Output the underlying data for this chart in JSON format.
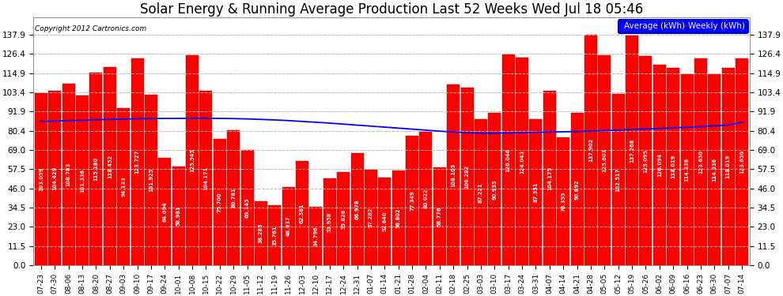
{
  "title": "Solar Energy & Running Average Production Last 52 Weeks Wed Jul 18 05:46",
  "copyright": "Copyright 2012 Cartronics.com",
  "legend_labels": [
    "Average (kWh)",
    "Weekly (kWh)"
  ],
  "bar_color": "#ff0000",
  "bar_edge_color": "#bb0000",
  "avg_line_color": "blue",
  "background_color": "#ffffff",
  "plot_bg_color": "#ffffff",
  "grid_color": "#bbbbbb",
  "ytick_labels": [
    "0.0",
    "11.5",
    "23.0",
    "34.5",
    "46.0",
    "57.5",
    "69.0",
    "80.4",
    "91.9",
    "103.4",
    "114.9",
    "126.4",
    "137.9"
  ],
  "ytick_values": [
    0.0,
    11.5,
    23.0,
    34.5,
    46.0,
    57.5,
    69.0,
    80.4,
    91.9,
    103.4,
    114.9,
    126.4,
    137.9
  ],
  "xlabels": [
    "07-23",
    "07-30",
    "08-06",
    "08-13",
    "08-20",
    "08-27",
    "09-03",
    "09-10",
    "09-17",
    "09-24",
    "10-01",
    "10-08",
    "10-15",
    "10-22",
    "10-29",
    "11-05",
    "11-12",
    "11-19",
    "11-26",
    "12-03",
    "12-10",
    "12-17",
    "12-24",
    "12-31",
    "01-07",
    "01-14",
    "01-21",
    "01-28",
    "02-04",
    "02-11",
    "02-18",
    "02-25",
    "03-03",
    "03-10",
    "03-17",
    "03-24",
    "03-31",
    "04-07",
    "04-14",
    "04-21",
    "04-28",
    "05-05",
    "05-12",
    "05-19",
    "05-26",
    "06-02",
    "06-09",
    "06-16",
    "06-23",
    "06-30",
    "07-07",
    "07-14"
  ],
  "weekly_vals": [
    103.059,
    104.429,
    108.783,
    101.336,
    115.18,
    118.452,
    94.133,
    123.727,
    101.925,
    64.094,
    58.981,
    125.545,
    104.171,
    75.7,
    80.781,
    69.145,
    38.285,
    35.761,
    46.937,
    62.581,
    34.796,
    51.958,
    55.826,
    66.978,
    57.282,
    52.64,
    56.802,
    77.349,
    80.022,
    58.776,
    108.105,
    106.282,
    87.221,
    90.935,
    126.046,
    124.043,
    87.351,
    104.175,
    76.355,
    90.892,
    137.902,
    125.603,
    102.517,
    137.268,
    125.095,
    120.094,
    118.019,
    114.336,
    123.65,
    114.336,
    118.019,
    123.65
  ],
  "avg_vals": [
    86.0,
    86.2,
    86.5,
    86.7,
    87.0,
    87.2,
    87.4,
    87.6,
    87.7,
    87.8,
    87.8,
    87.9,
    87.9,
    87.8,
    87.7,
    87.5,
    87.2,
    86.9,
    86.5,
    86.0,
    85.5,
    85.0,
    84.4,
    83.8,
    83.2,
    82.6,
    82.0,
    81.4,
    80.8,
    80.2,
    79.7,
    79.3,
    79.0,
    79.0,
    79.1,
    79.3,
    79.5,
    79.7,
    79.8,
    80.0,
    80.3,
    80.5,
    80.8,
    81.2,
    81.5,
    81.8,
    82.2,
    82.5,
    83.0,
    83.4,
    83.8,
    85.5
  ],
  "ylim": [
    0,
    148
  ],
  "title_fontsize": 12,
  "tick_fontsize": 7.5,
  "xlabel_fontsize": 6.5,
  "bar_label_fontsize": 4.8
}
